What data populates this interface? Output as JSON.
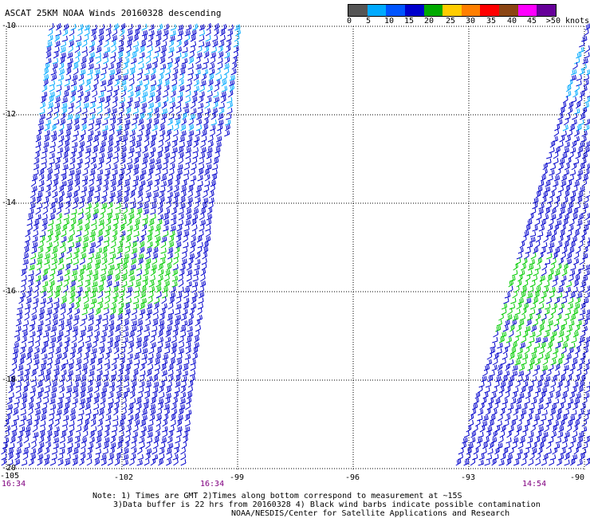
{
  "title": "ASCAT 25KM NOAA Winds 20160328 descending",
  "legend": {
    "colors": [
      "#555555",
      "#00aaff",
      "#0055ff",
      "#0000cc",
      "#00aa00",
      "#ffcc00",
      "#ff7f00",
      "#ff0000",
      "#8b4513",
      "#ff00ff",
      "#660099"
    ],
    "labels": [
      "0",
      "5",
      "10",
      "15",
      "20",
      "25",
      "30",
      "35",
      "40",
      "45",
      ">50 knots"
    ]
  },
  "axes": {
    "x_ticks": [
      "-105",
      "-102",
      "-99",
      "-96",
      "-93",
      "-90"
    ],
    "y_ticks": [
      "-10",
      "-12",
      "-14",
      "-16",
      "-18",
      "-20"
    ]
  },
  "times": [
    "16:34",
    "16:34",
    "14:54"
  ],
  "notes": [
    "Note: 1) Times are GMT 2)Times along bottom correspond to measurement at ~15S",
    "3)Data buffer is 22 hrs from 20160328 4) Black wind barbs indicate possible contamination",
    "NOAA/NESDIS/Center for Satellite Applications and Research"
  ],
  "barb_colors": {
    "light": "#00aaff",
    "blue": "#0000cc",
    "green": "#00cc00"
  }
}
